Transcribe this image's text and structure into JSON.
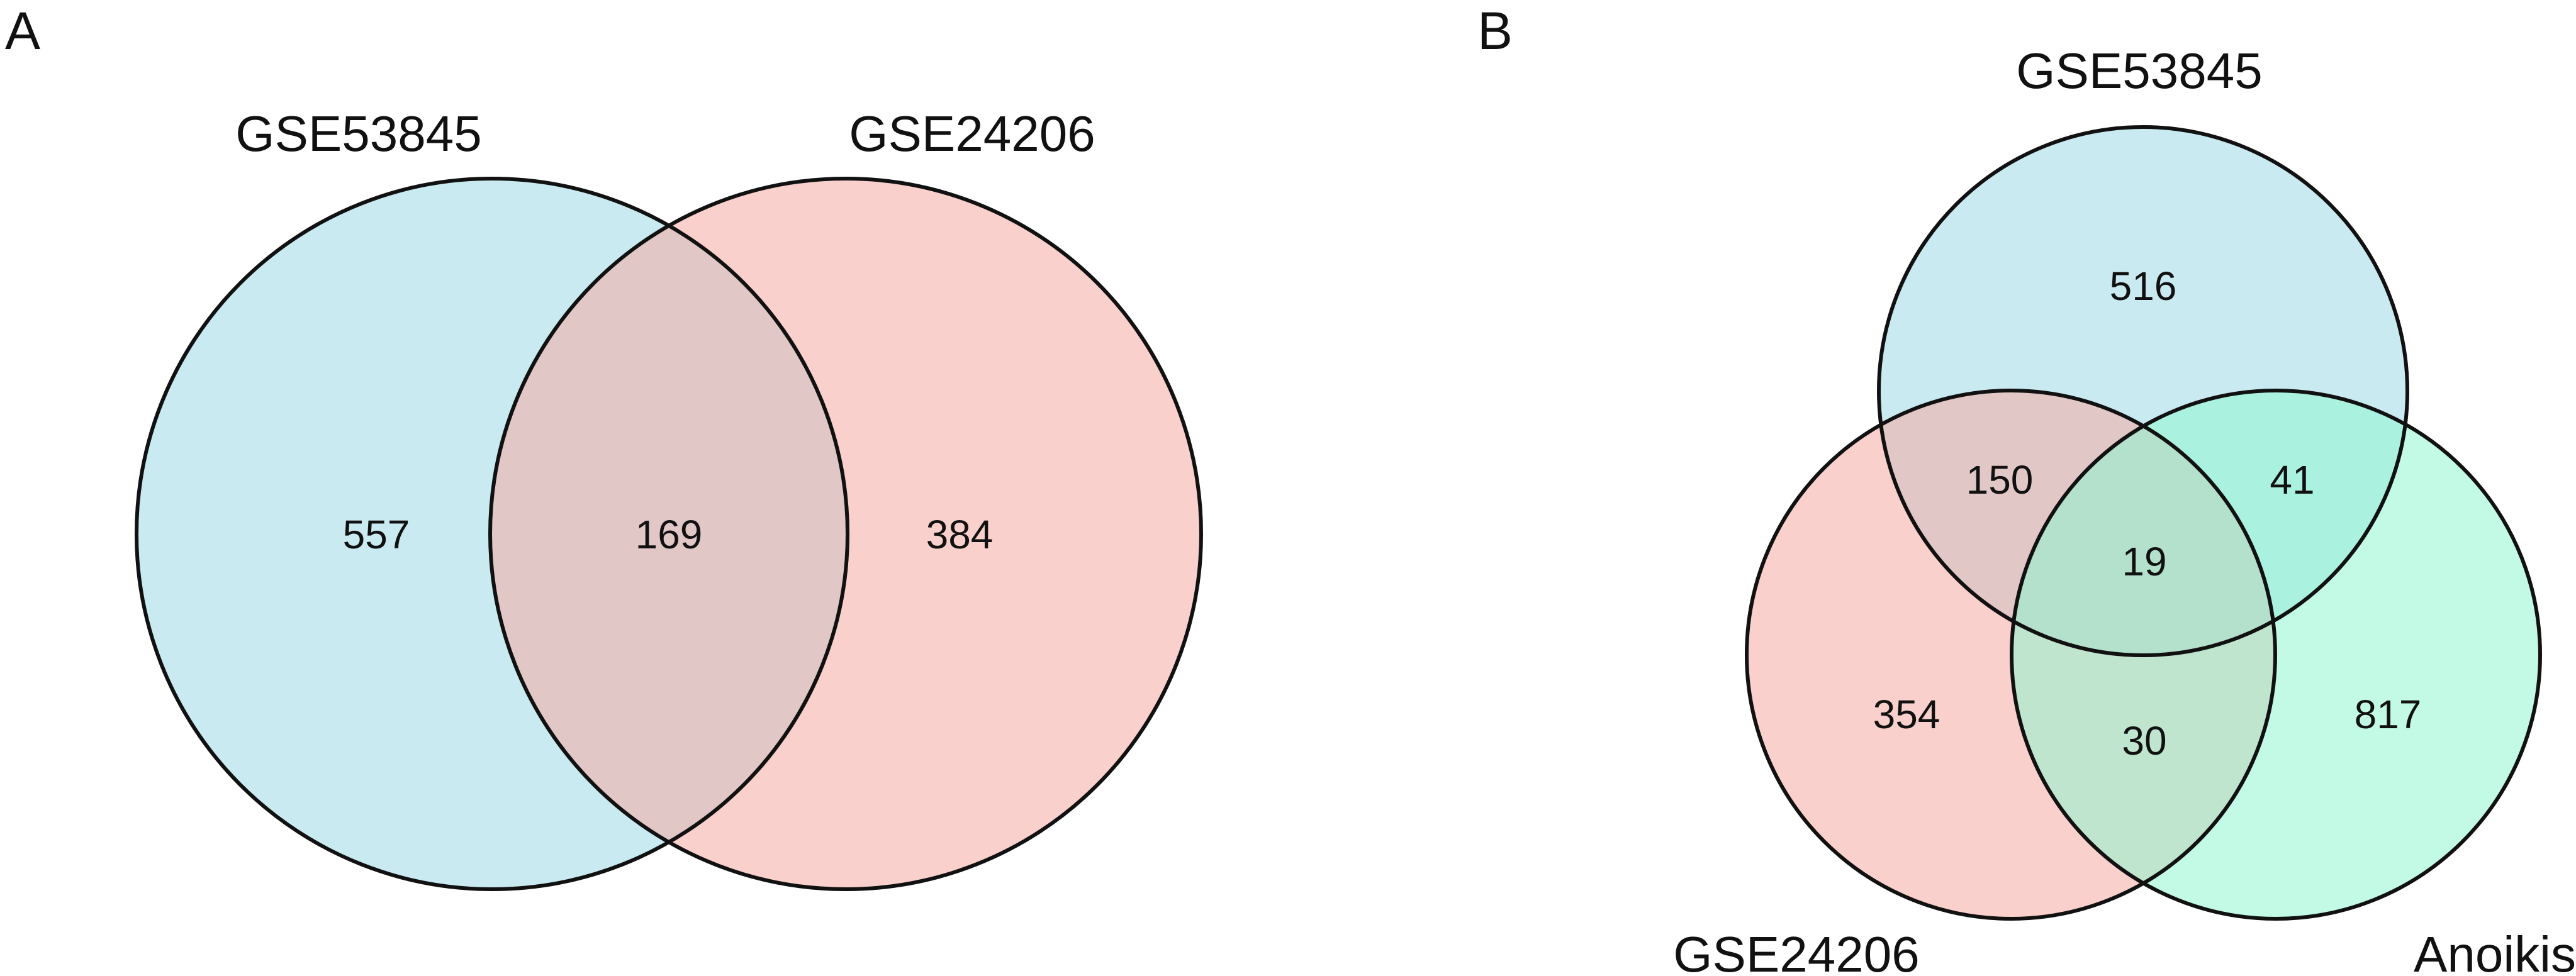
{
  "panels": {
    "a": {
      "letter": "A",
      "sets": {
        "gse53845": {
          "label": "GSE53845",
          "color": "#9fd9e7"
        },
        "gse24206": {
          "label": "GSE24206",
          "color": "#f4a9a1"
        }
      },
      "counts": {
        "gse53845_only": "557",
        "shared": "169",
        "gse24206_only": "384"
      }
    },
    "b": {
      "letter": "B",
      "sets": {
        "gse53845": {
          "label": "GSE53845",
          "color": "#9fd9e7"
        },
        "gse24206": {
          "label": "GSE24206",
          "color": "#f4a9a1"
        },
        "anoikis": {
          "label": "Anoikis",
          "color": "#8ff5d2"
        }
      },
      "counts": {
        "gse53845_only": "516",
        "gse24206_only": "354",
        "anoikis_only": "817",
        "gse53845_gse24206": "150",
        "gse53845_anoikis": "41",
        "gse24206_anoikis": "30",
        "all_three": "19"
      }
    }
  }
}
